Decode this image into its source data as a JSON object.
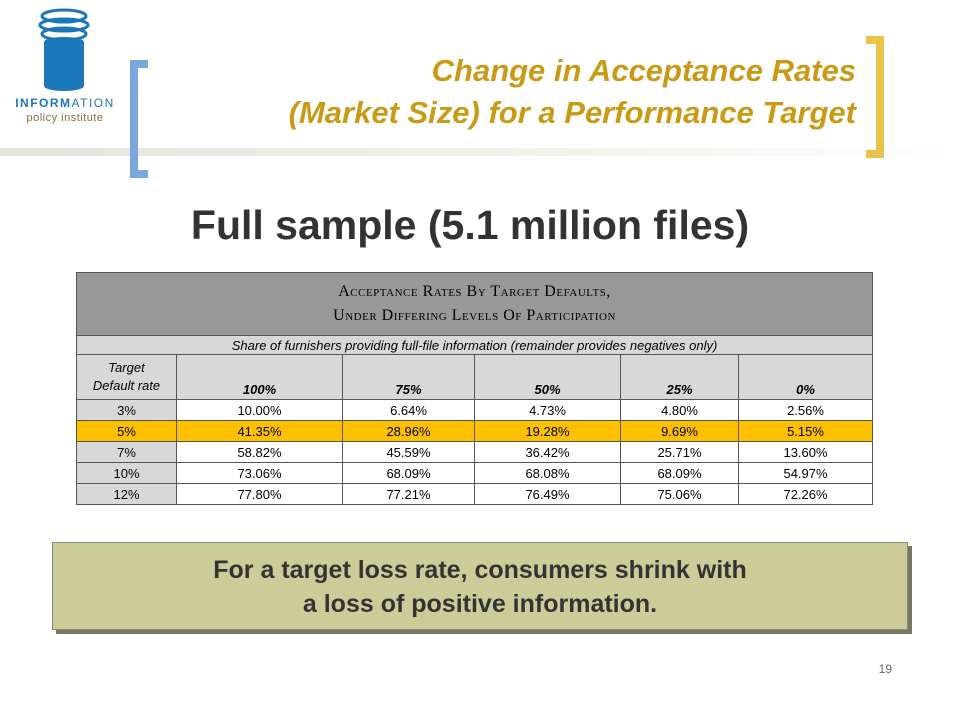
{
  "logo": {
    "word_bold": "INFORM",
    "word_light": "ATION",
    "subline": "policy institute"
  },
  "header": {
    "title_line1": "Change in Acceptance Rates",
    "title_line2": "(Market Size) for a Performance Target"
  },
  "subtitle": "Full sample (5.1 million files)",
  "table": {
    "caption_line1": "Acceptance Rates By Target Defaults,",
    "caption_line2": "Under Differing Levels Of Participation",
    "share_label": "Share of furnishers providing full-file information (remainder provides negatives only)",
    "row_header_line1": "Target",
    "row_header_line2": "Default rate",
    "columns": [
      "100%",
      "75%",
      "50%",
      "25%",
      "0%"
    ],
    "rows": [
      {
        "label": "3%",
        "values": [
          "10.00%",
          "6.64%",
          "4.73%",
          "4.80%",
          "2.56%"
        ]
      },
      {
        "label": "5%",
        "values": [
          "41.35%",
          "28.96%",
          "19.28%",
          "9.69%",
          "5.15%"
        ]
      },
      {
        "label": "7%",
        "values": [
          "58.82%",
          "45.59%",
          "36.42%",
          "25.71%",
          "13.60%"
        ]
      },
      {
        "label": "10%",
        "values": [
          "73.06%",
          "68.09%",
          "68.08%",
          "68.09%",
          "54.97%"
        ]
      },
      {
        "label": "12%",
        "values": [
          "77.80%",
          "77.21%",
          "76.49%",
          "75.06%",
          "72.26%"
        ]
      }
    ],
    "highlight_color": "#ffc000"
  },
  "callout": {
    "line1": "For a target loss rate, consumers shrink with",
    "line2": "a loss of positive information."
  },
  "page_number": "19",
  "colors": {
    "title": "#c99a16",
    "bracket_left": "#7aa7dc",
    "bracket_right": "#e8c34a",
    "callout_bg": "#cccc99"
  }
}
